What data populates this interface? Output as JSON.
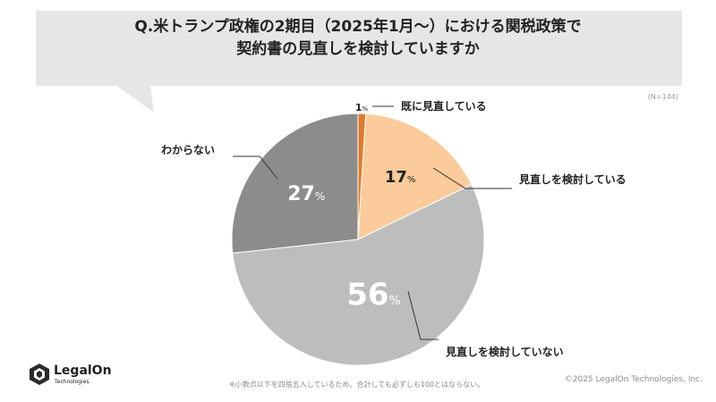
{
  "header": {
    "title_line1": "Q.米トランプ政権の2期目（2025年1月～）における関税政策で",
    "title_line2": "契約書の見直しを検討していますか"
  },
  "sample_size": "(N=144)",
  "chart_data": {
    "type": "pie",
    "title": "",
    "unit": "%",
    "slices": [
      {
        "label": "既に見直している",
        "value": 1,
        "color": "#E07B2A",
        "label_color": "#222222"
      },
      {
        "label": "見直しを検討している",
        "value": 17,
        "color": "#FBCB9B",
        "label_color": "#222222"
      },
      {
        "label": "見直しを検討していない",
        "value": 56,
        "color": "#BDBDBD",
        "label_color": "#FFFFFF"
      },
      {
        "label": "わからない",
        "value": 27,
        "color": "#8C8C8C",
        "label_color": "#FFFFFF"
      }
    ]
  },
  "footnote": "※小数点以下を四捨五入しているため、合計しても必ずしも100とはならない。",
  "copyright": "©2025 LegalOn Technologies, Inc.",
  "logo": {
    "name": "LegalOn",
    "sub": "Technologies"
  },
  "colors": {
    "bubble": "#E6E6E6",
    "leader": "#333333"
  }
}
